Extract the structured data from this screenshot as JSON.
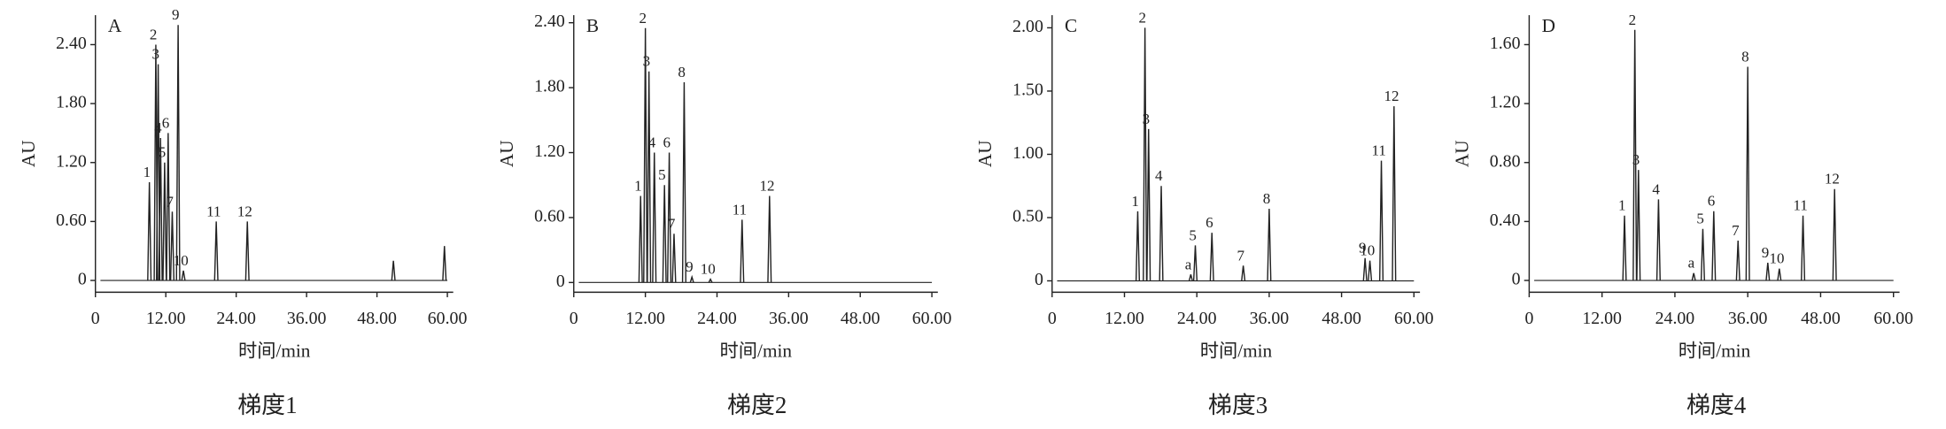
{
  "chart_data": [
    {
      "type": "chromatogram",
      "label": "A",
      "caption": "梯度1",
      "xlabel": "时间/min",
      "ylabel": "AU",
      "xlim": [
        0,
        61
      ],
      "ylim": [
        -0.12,
        2.7
      ],
      "xticks": [
        0,
        {
          "value": 12,
          "label": "12.00"
        },
        {
          "value": 24,
          "label": "24.00"
        },
        {
          "value": 36,
          "label": "36.00"
        },
        {
          "value": 48,
          "label": "48.00"
        },
        {
          "value": 60,
          "label": "60.00"
        }
      ],
      "yticks": [
        0,
        {
          "value": 0.6,
          "label": "0.60"
        },
        {
          "value": 1.2,
          "label": "1.20"
        },
        {
          "value": 1.8,
          "label": "1.80"
        },
        {
          "value": 2.4,
          "label": "2.40"
        }
      ],
      "peaks": [
        {
          "label": "1",
          "x": 9.2,
          "height": 1.0
        },
        {
          "label": "2",
          "x": 10.3,
          "height": 2.4
        },
        {
          "label": "3",
          "x": 10.7,
          "height": 2.2
        },
        {
          "label": "4",
          "x": 11.1,
          "height": 1.45
        },
        {
          "label": "5",
          "x": 11.8,
          "height": 1.2
        },
        {
          "label": "6",
          "x": 12.4,
          "height": 1.5
        },
        {
          "label": "7",
          "x": 13.1,
          "height": 0.7
        },
        {
          "label": "9",
          "x": 14.1,
          "height": 2.6
        },
        {
          "label": "10",
          "x": 15.0,
          "height": 0.1
        },
        {
          "label": "11",
          "x": 20.6,
          "height": 0.6
        },
        {
          "label": "12",
          "x": 25.9,
          "height": 0.6
        },
        {
          "x": 50.8,
          "height": 0.2
        },
        {
          "x": 59.5,
          "height": 0.35
        }
      ]
    },
    {
      "type": "chromatogram",
      "label": "B",
      "caption": "梯度2",
      "xlabel": "时间/min",
      "ylabel": "AU",
      "xlim": [
        0,
        61
      ],
      "ylim": [
        -0.09,
        2.47
      ],
      "xticks": [
        0,
        {
          "value": 12,
          "label": "12.00"
        },
        {
          "value": 24,
          "label": "24.00"
        },
        {
          "value": 36,
          "label": "36.00"
        },
        {
          "value": 48,
          "label": "48.00"
        },
        {
          "value": 60,
          "label": "60.00"
        }
      ],
      "yticks": [
        0,
        {
          "value": 0.6,
          "label": "0.60"
        },
        {
          "value": 1.2,
          "label": "1.20"
        },
        {
          "value": 1.8,
          "label": "1.80"
        },
        {
          "value": 2.4,
          "label": "2.40"
        }
      ],
      "peaks": [
        {
          "label": "1",
          "x": 11.2,
          "height": 0.8
        },
        {
          "label": "2",
          "x": 12.0,
          "height": 2.35
        },
        {
          "label": "3",
          "x": 12.6,
          "height": 1.95
        },
        {
          "label": "4",
          "x": 13.5,
          "height": 1.2
        },
        {
          "label": "5",
          "x": 15.2,
          "height": 0.9
        },
        {
          "label": "6",
          "x": 16.0,
          "height": 1.2
        },
        {
          "label": "7",
          "x": 16.8,
          "height": 0.45
        },
        {
          "label": "8",
          "x": 18.5,
          "height": 1.85
        },
        {
          "label": "9",
          "x": 19.8,
          "height": 0.05
        },
        {
          "label": "10",
          "x": 22.9,
          "height": 0.03
        },
        {
          "label": "11",
          "x": 28.2,
          "height": 0.58
        },
        {
          "label": "12",
          "x": 32.8,
          "height": 0.8
        }
      ]
    },
    {
      "type": "chromatogram",
      "label": "C",
      "caption": "梯度3",
      "xlabel": "时间/min",
      "ylabel": "AU",
      "xlim": [
        0,
        61
      ],
      "ylim": [
        -0.09,
        2.1
      ],
      "xticks": [
        0,
        {
          "value": 12,
          "label": "12.00"
        },
        {
          "value": 24,
          "label": "24.00"
        },
        {
          "value": 36,
          "label": "36.00"
        },
        {
          "value": 48,
          "label": "48.00"
        },
        {
          "value": 60,
          "label": "60.00"
        }
      ],
      "yticks": [
        0,
        {
          "value": 0.5,
          "label": "0.50"
        },
        {
          "value": 1,
          "label": "1.00"
        },
        {
          "value": 1.5,
          "label": "1.50"
        },
        {
          "value": 2,
          "label": "2.00"
        }
      ],
      "peaks": [
        {
          "label": "1",
          "x": 14.2,
          "height": 0.55
        },
        {
          "label": "2",
          "x": 15.4,
          "height": 2.0
        },
        {
          "label": "3",
          "x": 16.0,
          "height": 1.2
        },
        {
          "label": "4",
          "x": 18.1,
          "height": 0.75
        },
        {
          "label": "a",
          "x": 23.0,
          "height": 0.05
        },
        {
          "label": "5",
          "x": 23.75,
          "height": 0.28
        },
        {
          "label": "6",
          "x": 26.5,
          "height": 0.38
        },
        {
          "label": "7",
          "x": 31.7,
          "height": 0.12
        },
        {
          "label": "8",
          "x": 36.0,
          "height": 0.57
        },
        {
          "label": "9",
          "x": 51.9,
          "height": 0.18
        },
        {
          "label": "10",
          "x": 52.7,
          "height": 0.16
        },
        {
          "label": "11",
          "x": 54.6,
          "height": 0.95
        },
        {
          "label": "12",
          "x": 56.7,
          "height": 1.38
        }
      ]
    },
    {
      "type": "chromatogram",
      "label": "D",
      "caption": "梯度4",
      "xlabel": "时间/min",
      "ylabel": "AU",
      "xlim": [
        0,
        61
      ],
      "ylim": [
        -0.08,
        1.8
      ],
      "xticks": [
        0,
        {
          "value": 12,
          "label": "12.00"
        },
        {
          "value": 24,
          "label": "24.00"
        },
        {
          "value": 36,
          "label": "36.00"
        },
        {
          "value": 48,
          "label": "48.00"
        },
        {
          "value": 60,
          "label": "60.00"
        }
      ],
      "yticks": [
        0,
        {
          "value": 0.4,
          "label": "0.40"
        },
        {
          "value": 0.8,
          "label": "0.80"
        },
        {
          "value": 1.2,
          "label": "1.20"
        },
        {
          "value": 1.6,
          "label": "1.60"
        }
      ],
      "peaks": [
        {
          "label": "1",
          "x": 15.7,
          "height": 0.44
        },
        {
          "label": "2",
          "x": 17.4,
          "height": 1.7
        },
        {
          "label": "3",
          "x": 18.0,
          "height": 0.75
        },
        {
          "label": "4",
          "x": 21.3,
          "height": 0.55
        },
        {
          "label": "a",
          "x": 27.1,
          "height": 0.05
        },
        {
          "label": "5",
          "x": 28.6,
          "height": 0.35
        },
        {
          "label": "6",
          "x": 30.4,
          "height": 0.47
        },
        {
          "label": "7",
          "x": 34.4,
          "height": 0.27
        },
        {
          "label": "8",
          "x": 36.0,
          "height": 1.45
        },
        {
          "label": "9",
          "x": 39.3,
          "height": 0.12
        },
        {
          "label": "10",
          "x": 41.2,
          "height": 0.08
        },
        {
          "label": "11",
          "x": 45.1,
          "height": 0.44
        },
        {
          "label": "12",
          "x": 50.3,
          "height": 0.62
        }
      ]
    }
  ]
}
